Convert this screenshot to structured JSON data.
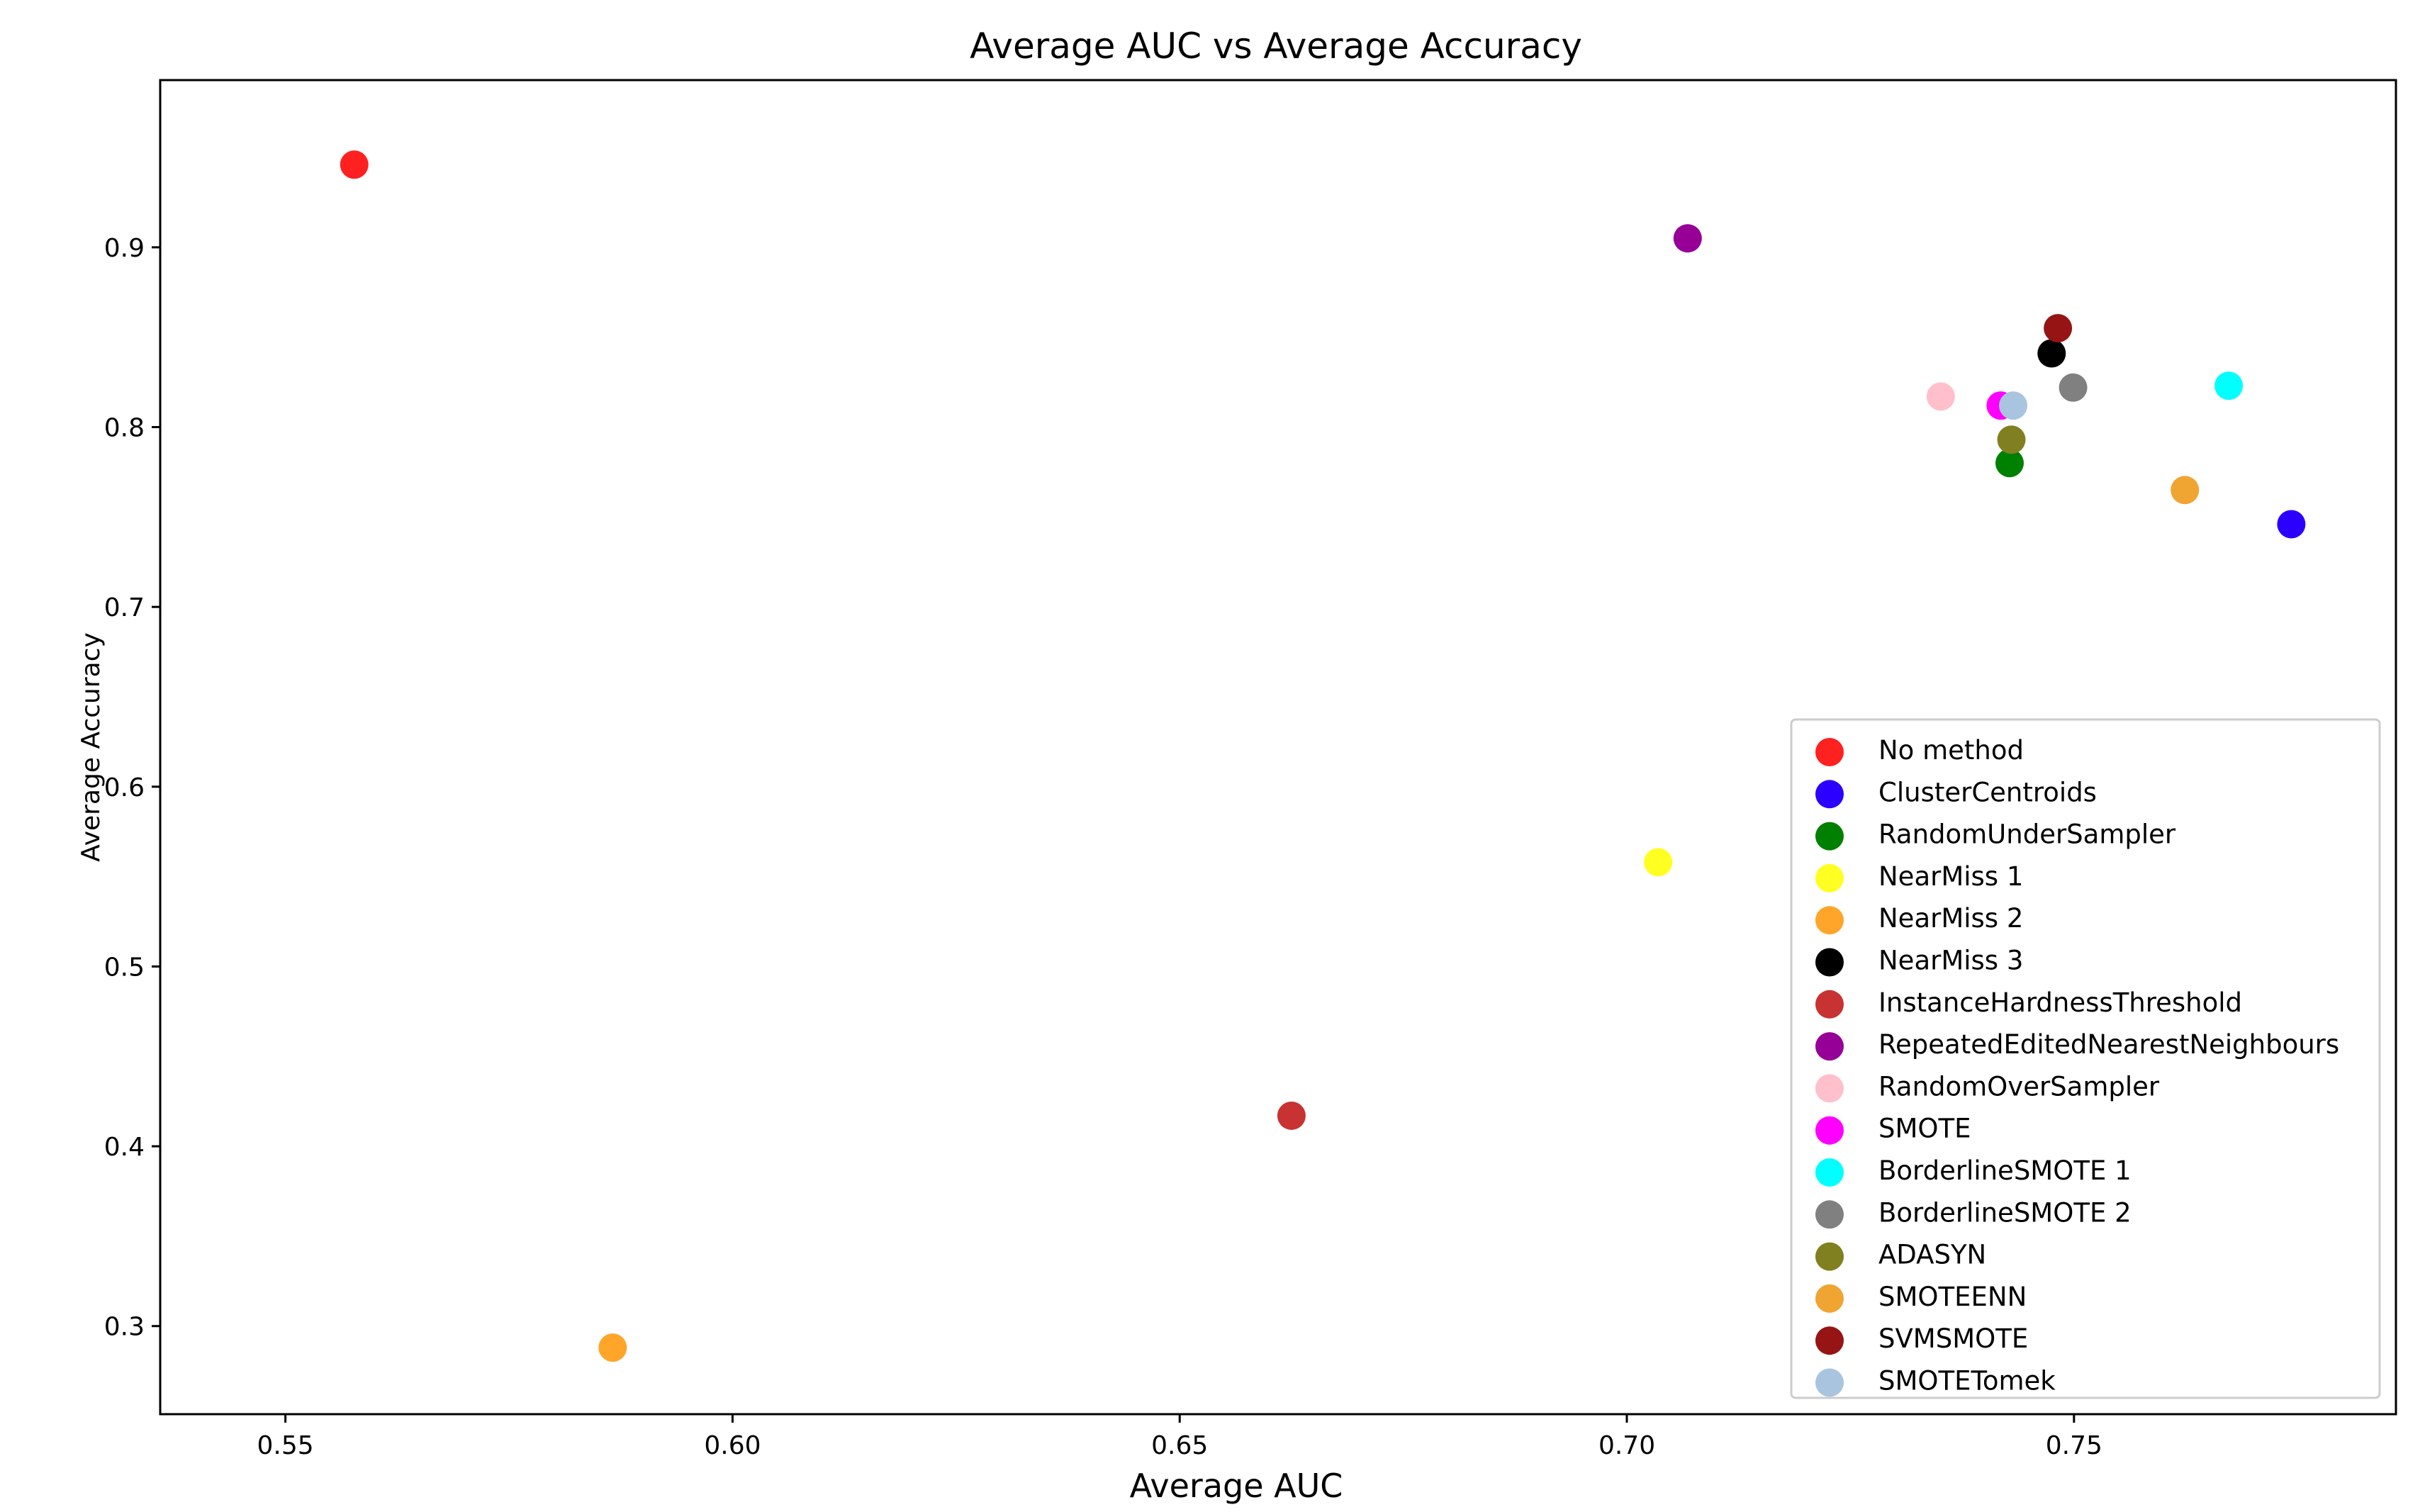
{
  "chart_data": {
    "type": "scatter",
    "title": "Average AUC vs Average Accuracy",
    "xlabel": "Average AUC",
    "ylabel": "Average Accuracy",
    "xlim": [
      0.536,
      0.786
    ],
    "ylim": [
      0.251,
      0.993
    ],
    "x_ticks": [
      0.55,
      0.6,
      0.65,
      0.7,
      0.75
    ],
    "x_tick_labels": [
      "0.55",
      "0.60",
      "0.65",
      "0.70",
      "0.75"
    ],
    "y_ticks": [
      0.3,
      0.4,
      0.5,
      0.6,
      0.7,
      0.8,
      0.9
    ],
    "y_tick_labels": [
      "0.3",
      "0.4",
      "0.5",
      "0.6",
      "0.7",
      "0.8",
      "0.9"
    ],
    "grid": false,
    "legend_position": "lower-right",
    "series": [
      {
        "name": "No method",
        "color": "#ff2020",
        "x": 0.5577,
        "y": 0.946
      },
      {
        "name": "ClusterCentroids",
        "color": "#2b00ff",
        "x": 0.7743,
        "y": 0.746
      },
      {
        "name": "RandomUnderSampler",
        "color": "#008000",
        "x": 0.7428,
        "y": 0.78
      },
      {
        "name": "NearMiss 1",
        "color": "#ffff22",
        "x": 0.7035,
        "y": 0.558
      },
      {
        "name": "NearMiss 2",
        "color": "#ffa52a",
        "x": 0.5866,
        "y": 0.288
      },
      {
        "name": "NearMiss 3",
        "color": "#000000",
        "x": 0.7475,
        "y": 0.841
      },
      {
        "name": "InstanceHardnessThreshold",
        "color": "#c83232",
        "x": 0.6625,
        "y": 0.417
      },
      {
        "name": "RepeatedEditedNearestNeighbours",
        "color": "#960096",
        "x": 0.7068,
        "y": 0.905
      },
      {
        "name": "RandomOverSampler",
        "color": "#ffc0cb",
        "x": 0.7351,
        "y": 0.817
      },
      {
        "name": "SMOTE",
        "color": "#ff00ff",
        "x": 0.7418,
        "y": 0.812
      },
      {
        "name": "BorderlineSMOTE 1",
        "color": "#00ffff",
        "x": 0.7673,
        "y": 0.823
      },
      {
        "name": "BorderlineSMOTE 2",
        "color": "#808080",
        "x": 0.7499,
        "y": 0.822
      },
      {
        "name": "ADASYN",
        "color": "#808020",
        "x": 0.743,
        "y": 0.793
      },
      {
        "name": "SMOTEENN",
        "color": "#f0a532",
        "x": 0.7624,
        "y": 0.765
      },
      {
        "name": "SVMSMOTE",
        "color": "#961414",
        "x": 0.7482,
        "y": 0.855
      },
      {
        "name": "SMOTETomek",
        "color": "#a9c4de",
        "x": 0.7432,
        "y": 0.812
      }
    ]
  }
}
